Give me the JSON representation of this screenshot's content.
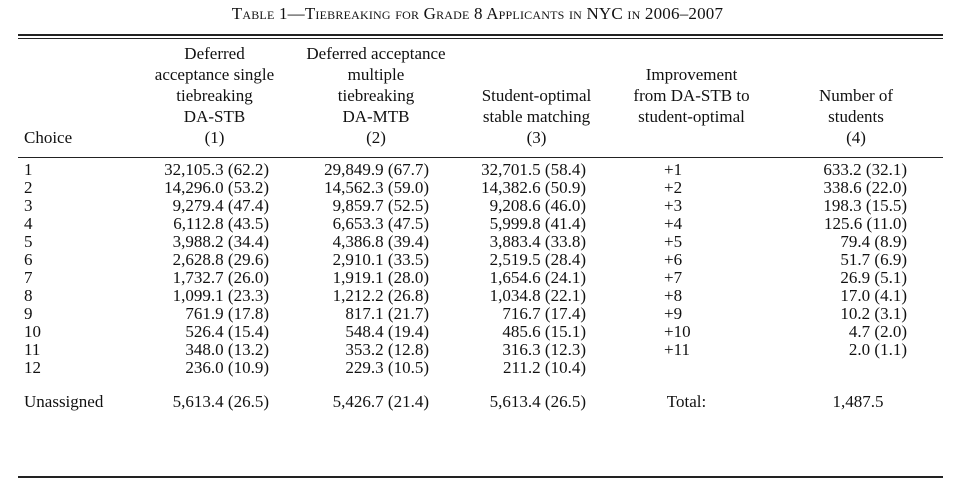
{
  "title": "Table 1—Tiebreaking for Grade 8 Applicants in NYC in 2006–2007",
  "header": {
    "choice": "Choice",
    "col1": [
      "Deferred",
      "acceptance single",
      "tiebreaking",
      "DA-STB",
      "(1)"
    ],
    "col2": [
      "Deferred acceptance",
      "multiple",
      "tiebreaking",
      "DA-MTB",
      "(2)"
    ],
    "col3": [
      "Student-optimal",
      "stable matching",
      "(3)"
    ],
    "col4": [
      "Improvement",
      "from DA-STB to",
      "student-optimal"
    ],
    "col5": [
      "Number of",
      "students",
      "(4)"
    ]
  },
  "rows": [
    {
      "choice": "1",
      "da_stb": "32,105.3 (62.2)",
      "da_mtb": "29,849.9 (67.7)",
      "so": "32,701.5 (58.4)",
      "impr": "+1",
      "num": "633.2 (32.1)"
    },
    {
      "choice": "2",
      "da_stb": "14,296.0 (53.2)",
      "da_mtb": "14,562.3 (59.0)",
      "so": "14,382.6 (50.9)",
      "impr": "+2",
      "num": "338.6 (22.0)"
    },
    {
      "choice": "3",
      "da_stb": "9,279.4 (47.4)",
      "da_mtb": "9,859.7 (52.5)",
      "so": "9,208.6 (46.0)",
      "impr": "+3",
      "num": "198.3 (15.5)"
    },
    {
      "choice": "4",
      "da_stb": "6,112.8 (43.5)",
      "da_mtb": "6,653.3 (47.5)",
      "so": "5,999.8 (41.4)",
      "impr": "+4",
      "num": "125.6 (11.0)"
    },
    {
      "choice": "5",
      "da_stb": "3,988.2 (34.4)",
      "da_mtb": "4,386.8 (39.4)",
      "so": "3,883.4 (33.8)",
      "impr": "+5",
      "num": "79.4 (8.9)"
    },
    {
      "choice": "6",
      "da_stb": "2,628.8 (29.6)",
      "da_mtb": "2,910.1 (33.5)",
      "so": "2,519.5 (28.4)",
      "impr": "+6",
      "num": "51.7 (6.9)"
    },
    {
      "choice": "7",
      "da_stb": "1,732.7 (26.0)",
      "da_mtb": "1,919.1 (28.0)",
      "so": "1,654.6 (24.1)",
      "impr": "+7",
      "num": "26.9 (5.1)"
    },
    {
      "choice": "8",
      "da_stb": "1,099.1 (23.3)",
      "da_mtb": "1,212.2 (26.8)",
      "so": "1,034.8 (22.1)",
      "impr": "+8",
      "num": "17.0 (4.1)"
    },
    {
      "choice": "9",
      "da_stb": "761.9 (17.8)",
      "da_mtb": "817.1 (21.7)",
      "so": "716.7 (17.4)",
      "impr": "+9",
      "num": "10.2 (3.1)"
    },
    {
      "choice": "10",
      "da_stb": "526.4 (15.4)",
      "da_mtb": "548.4 (19.4)",
      "so": "485.6 (15.1)",
      "impr": "+10",
      "num": "4.7 (2.0)"
    },
    {
      "choice": "11",
      "da_stb": "348.0 (13.2)",
      "da_mtb": "353.2 (12.8)",
      "so": "316.3 (12.3)",
      "impr": "+11",
      "num": "2.0 (1.1)"
    },
    {
      "choice": "12",
      "da_stb": "236.0 (10.9)",
      "da_mtb": "229.3 (10.5)",
      "so": "211.2 (10.4)",
      "impr": "",
      "num": ""
    }
  ],
  "unassigned": {
    "label": "Unassigned",
    "da_stb": "5,613.4 (26.5)",
    "da_mtb": "5,426.7 (21.4)",
    "so": "5,613.4 (26.5)",
    "total_label": "Total:",
    "total_value": "1,487.5"
  }
}
